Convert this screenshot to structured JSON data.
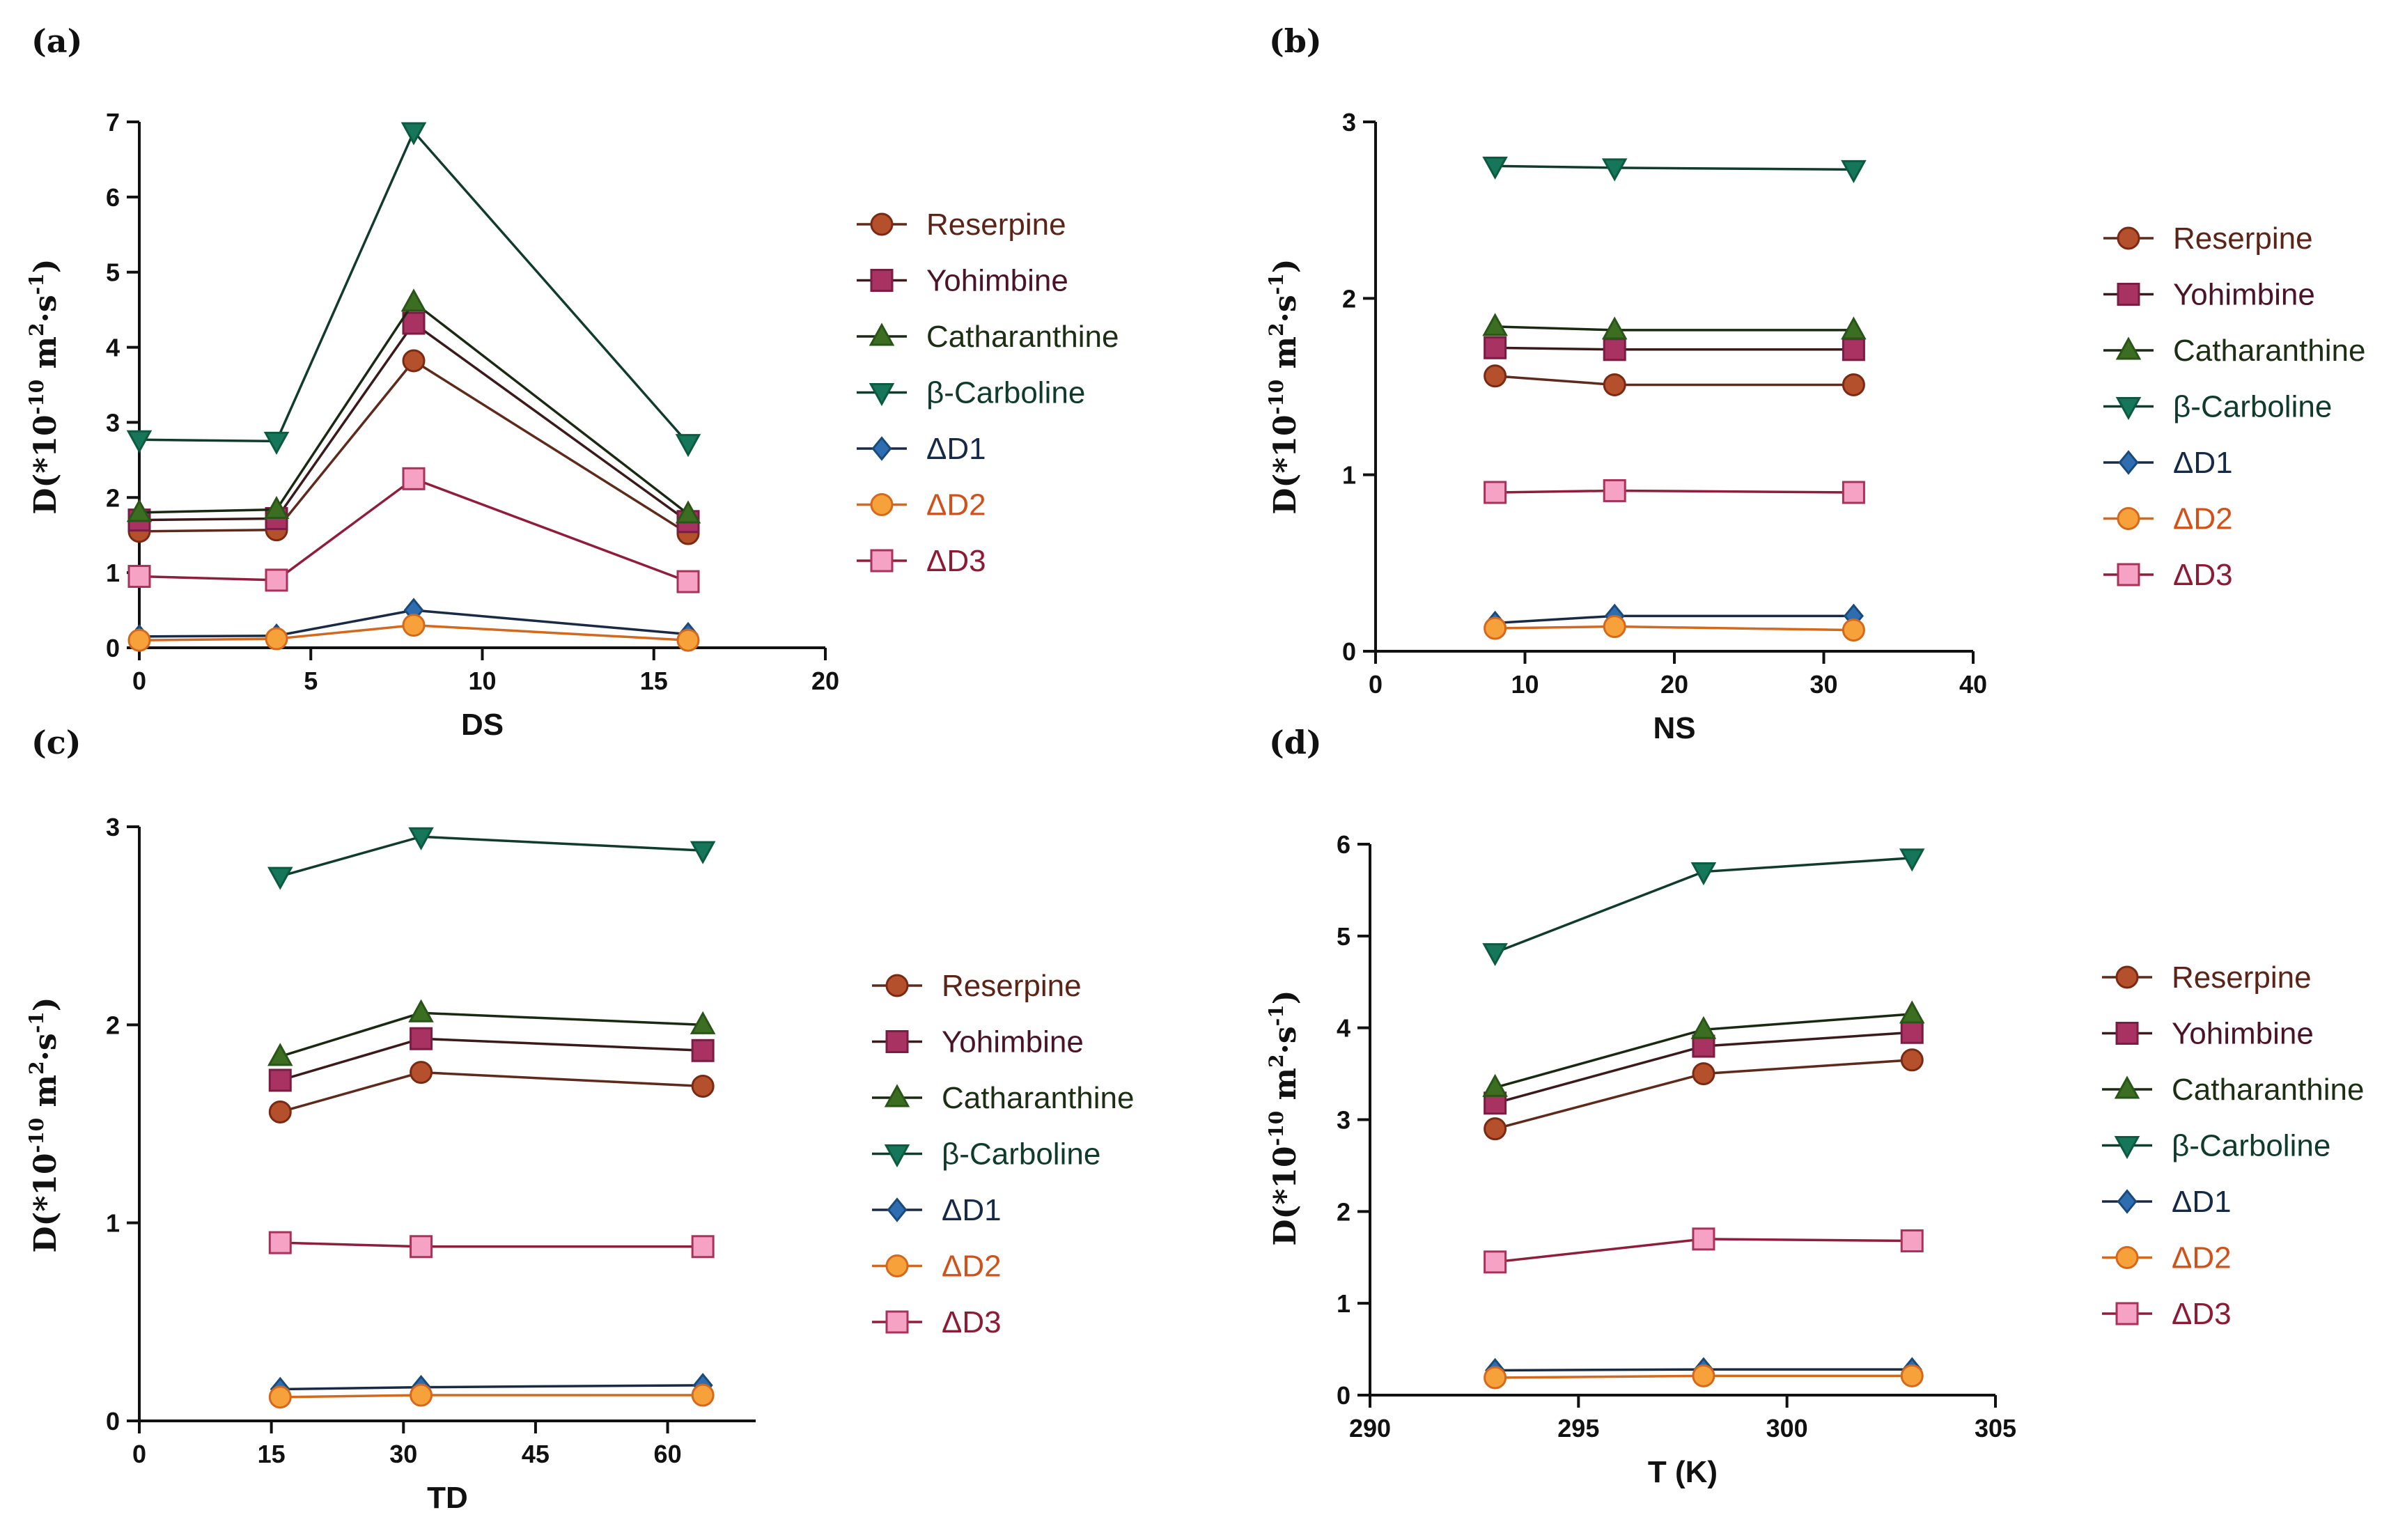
{
  "chart_data": [
    {
      "type": "line",
      "panel": "(a)",
      "xlabel": "DS",
      "ylabel": "D(*10",
      "ylabel_exp": "-10",
      "ylabel_unit": " m",
      "ylabel_exp2": "2",
      "ylabel_dot": "·s",
      "ylabel_exp3": "-1",
      "ylabel_close": ")",
      "xlim": [
        0,
        20
      ],
      "ylim": [
        0,
        7
      ],
      "xticks": [
        0,
        5,
        10,
        15,
        20
      ],
      "yticks": [
        0,
        1,
        2,
        3,
        4,
        5,
        6,
        7
      ],
      "x": [
        0,
        4,
        8,
        16
      ],
      "legend_position": "right",
      "series": [
        {
          "name": "Reserpine",
          "values": [
            1.55,
            1.57,
            3.82,
            1.52
          ]
        },
        {
          "name": "Yohimbine",
          "values": [
            1.7,
            1.72,
            4.32,
            1.68
          ]
        },
        {
          "name": "Catharanthine",
          "values": [
            1.8,
            1.84,
            4.6,
            1.78
          ]
        },
        {
          "name": "β-Carboline",
          "values": [
            2.77,
            2.75,
            6.87,
            2.72
          ]
        },
        {
          "name": "ΔD1",
          "values": [
            0.15,
            0.16,
            0.5,
            0.18
          ]
        },
        {
          "name": "ΔD2",
          "values": [
            0.1,
            0.12,
            0.3,
            0.1
          ]
        },
        {
          "name": "ΔD3",
          "values": [
            0.95,
            0.9,
            2.25,
            0.88
          ]
        }
      ]
    },
    {
      "type": "line",
      "panel": "(b)",
      "xlabel": "NS",
      "ylabel": "D(*10",
      "ylabel_exp": "-10",
      "ylabel_unit": " m",
      "ylabel_exp2": "2",
      "ylabel_dot": "·s",
      "ylabel_exp3": "-1",
      "ylabel_close": ")",
      "xlim": [
        0,
        40
      ],
      "ylim": [
        0,
        3
      ],
      "xticks": [
        0,
        10,
        20,
        30,
        40
      ],
      "yticks": [
        0,
        1,
        2,
        3
      ],
      "x": [
        8,
        16,
        32
      ],
      "legend_position": "right",
      "series": [
        {
          "name": "Reserpine",
          "values": [
            1.56,
            1.51,
            1.51
          ]
        },
        {
          "name": "Yohimbine",
          "values": [
            1.72,
            1.71,
            1.71
          ]
        },
        {
          "name": "Catharanthine",
          "values": [
            1.84,
            1.82,
            1.82
          ]
        },
        {
          "name": "β-Carboline",
          "values": [
            2.75,
            2.74,
            2.73
          ]
        },
        {
          "name": "ΔD1",
          "values": [
            0.16,
            0.2,
            0.2
          ]
        },
        {
          "name": "ΔD2",
          "values": [
            0.13,
            0.14,
            0.12
          ]
        },
        {
          "name": "ΔD3",
          "values": [
            0.9,
            0.91,
            0.9
          ]
        }
      ]
    },
    {
      "type": "line",
      "panel": "(c)",
      "xlabel": "TD",
      "ylabel": "D(*10",
      "ylabel_exp": "-10",
      "ylabel_unit": " m",
      "ylabel_exp2": "2",
      "ylabel_dot": "·s",
      "ylabel_exp3": "-1",
      "ylabel_close": ")",
      "xlim": [
        0,
        70
      ],
      "ylim": [
        0,
        3
      ],
      "xticks": [
        0,
        15,
        30,
        45,
        60
      ],
      "yticks": [
        0,
        1,
        2,
        3
      ],
      "x": [
        16,
        32,
        64
      ],
      "legend_position": "right",
      "series": [
        {
          "name": "Reserpine",
          "values": [
            1.56,
            1.76,
            1.69
          ]
        },
        {
          "name": "Yohimbine",
          "values": [
            1.72,
            1.93,
            1.87
          ]
        },
        {
          "name": "Catharanthine",
          "values": [
            1.84,
            2.06,
            2.0
          ]
        },
        {
          "name": "β-Carboline",
          "values": [
            2.75,
            2.95,
            2.88
          ]
        },
        {
          "name": "ΔD1",
          "values": [
            0.16,
            0.17,
            0.18
          ]
        },
        {
          "name": "ΔD2",
          "values": [
            0.12,
            0.13,
            0.13
          ]
        },
        {
          "name": "ΔD3",
          "values": [
            0.9,
            0.88,
            0.88
          ]
        }
      ]
    },
    {
      "type": "line",
      "panel": "(d)",
      "xlabel": "T (K)",
      "ylabel": "D(*10",
      "ylabel_exp": "-10",
      "ylabel_unit": " m",
      "ylabel_exp2": "2",
      "ylabel_dot": "·s",
      "ylabel_exp3": "-1",
      "ylabel_close": ")",
      "xlim": [
        290,
        305
      ],
      "ylim": [
        0,
        6
      ],
      "xticks": [
        290,
        295,
        300,
        305
      ],
      "yticks": [
        0,
        1,
        2,
        3,
        4,
        5,
        6
      ],
      "x": [
        293,
        298,
        303
      ],
      "legend_position": "right",
      "series": [
        {
          "name": "Reserpine",
          "values": [
            2.9,
            3.5,
            3.65
          ]
        },
        {
          "name": "Yohimbine",
          "values": [
            3.18,
            3.8,
            3.95
          ]
        },
        {
          "name": "Catharanthine",
          "values": [
            3.35,
            3.98,
            4.15
          ]
        },
        {
          "name": "β-Carboline",
          "values": [
            4.82,
            5.7,
            5.85
          ]
        },
        {
          "name": "ΔD1",
          "values": [
            0.27,
            0.28,
            0.28
          ]
        },
        {
          "name": "ΔD2",
          "values": [
            0.19,
            0.21,
            0.21
          ]
        },
        {
          "name": "ΔD3",
          "values": [
            1.45,
            1.7,
            1.68
          ]
        }
      ]
    }
  ],
  "styles": {
    "Reserpine": {
      "marker": "circle",
      "fill": "#b5502d",
      "stroke": "#7a2a12",
      "line": "#5e2a1c",
      "text": "#5a2418"
    },
    "Yohimbine": {
      "marker": "square",
      "fill": "#a83262",
      "stroke": "#7a1d44",
      "line": "#3a1a1a",
      "text": "#4a1426"
    },
    "Catharanthine": {
      "marker": "triangle-up",
      "fill": "#3c6e22",
      "stroke": "#2a5518",
      "line": "#1a2a12",
      "text": "#1c2e14"
    },
    "β-Carboline": {
      "marker": "triangle-down",
      "fill": "#16765a",
      "stroke": "#0c5a40",
      "line": "#113b2c",
      "text": "#0f3a2c"
    },
    "ΔD1": {
      "marker": "diamond",
      "fill": "#2e6db0",
      "stroke": "#1a4a7a",
      "line": "#1a2a44",
      "text": "#162a46"
    },
    "ΔD2": {
      "marker": "circle",
      "fill": "#f7a13a",
      "stroke": "#d2691e",
      "line": "#d2691e",
      "text": "#d0521a"
    },
    "ΔD3": {
      "marker": "square",
      "fill": "#f5a2c4",
      "stroke": "#a8325a",
      "line": "#8e1e3c",
      "text": "#8c1b36"
    }
  }
}
